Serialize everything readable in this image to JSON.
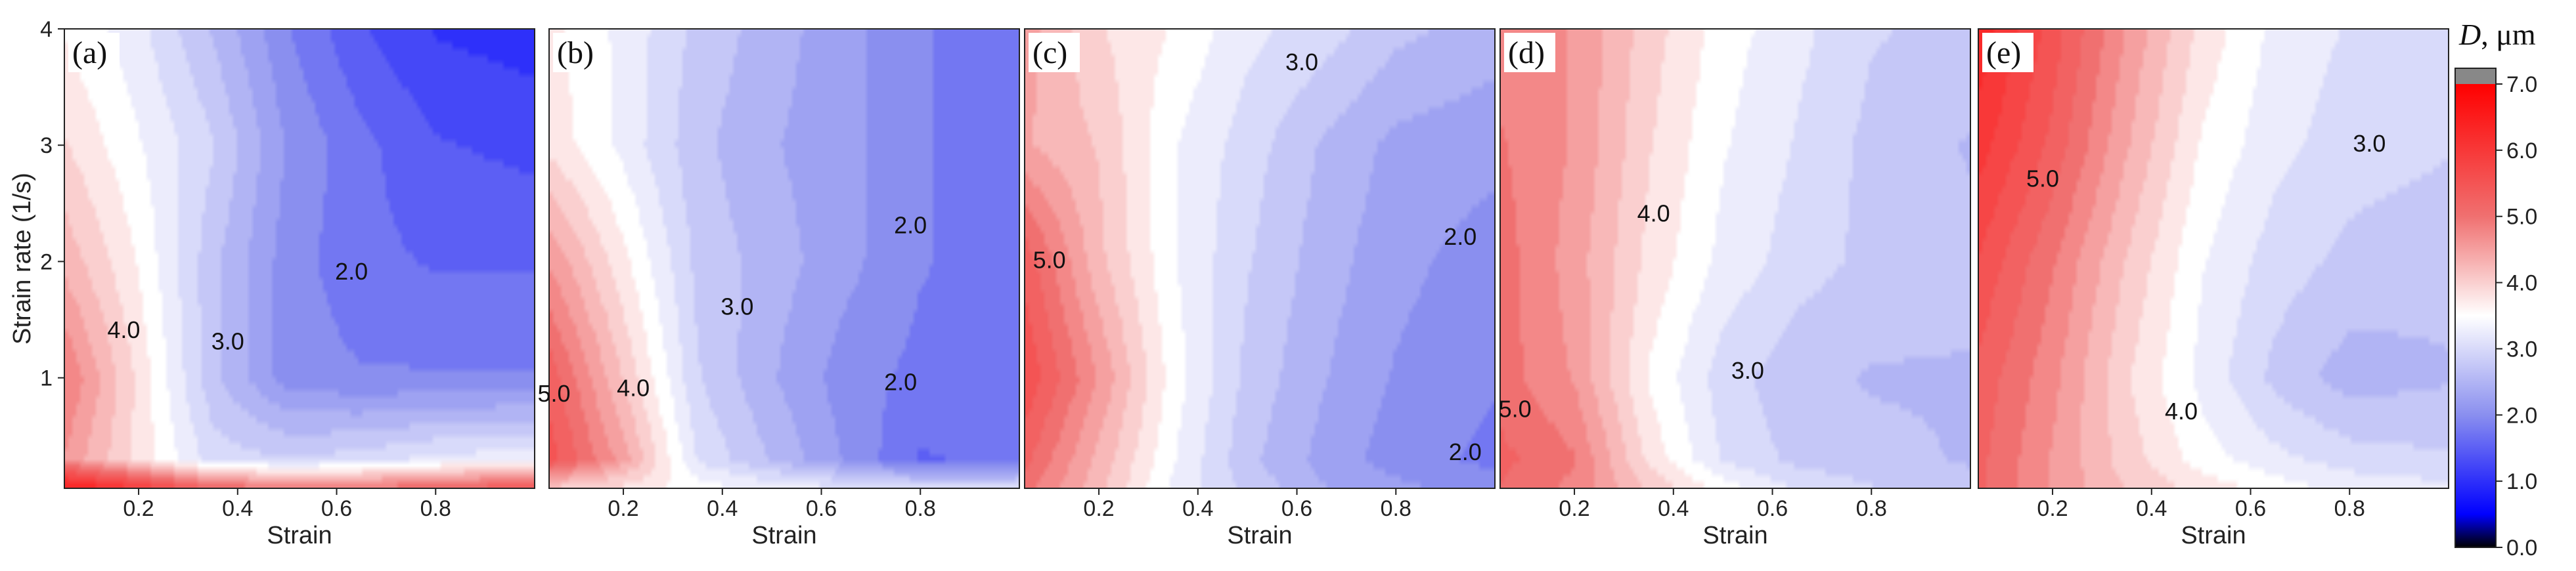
{
  "chart_data": {
    "type": "heatmap",
    "description_kind": "contour",
    "shared": {
      "xlabel": "Strain",
      "ylabel": "Strain rate (1/s)",
      "xlim": [
        0.05,
        1.0
      ],
      "ylim": [
        0.05,
        4.0
      ],
      "xticks": [
        "0.2",
        "0.4",
        "0.6",
        "0.8"
      ],
      "xtick_values": [
        0.2,
        0.4,
        0.6,
        0.8
      ],
      "yticks": [
        "1",
        "2",
        "3",
        "4"
      ],
      "ytick_values": [
        1,
        2,
        3,
        4
      ]
    },
    "colorbar": {
      "title_italic": "D",
      "title_unit": ", μm",
      "range": [
        0.0,
        7.0
      ],
      "ticks": [
        "0.0",
        "1.0",
        "2.0",
        "3.0",
        "4.0",
        "5.0",
        "6.0",
        "7.0"
      ],
      "tick_values": [
        0,
        1,
        2,
        3,
        4,
        5,
        6,
        7
      ],
      "overflow_color": "#888888",
      "stops": [
        {
          "v": 0.0,
          "c": "#000000"
        },
        {
          "v": 0.5,
          "c": "#0000ff"
        },
        {
          "v": 2.0,
          "c": "#8a8fef"
        },
        {
          "v": 3.5,
          "c": "#ffffff"
        },
        {
          "v": 5.0,
          "c": "#f07070"
        },
        {
          "v": 7.0,
          "c": "#ff0000"
        }
      ]
    },
    "panels": [
      {
        "label": "(a)",
        "show_yaxis": true,
        "x": [
          0.05,
          0.2,
          0.35,
          0.5,
          0.65,
          0.8,
          1.0
        ],
        "y": [
          0.05,
          0.3,
          1.0,
          2.0,
          3.0,
          4.0
        ],
        "z": [
          [
            6.6,
            6.0,
            5.2,
            5.0,
            5.0,
            5.2,
            5.5
          ],
          [
            4.6,
            3.8,
            3.0,
            2.9,
            3.0,
            3.2,
            3.3
          ],
          [
            4.9,
            3.8,
            2.7,
            2.0,
            1.9,
            1.9,
            1.9
          ],
          [
            4.3,
            3.6,
            2.7,
            2.0,
            1.7,
            1.6,
            1.6
          ],
          [
            3.9,
            3.4,
            2.9,
            2.1,
            1.7,
            1.4,
            1.3
          ],
          [
            3.6,
            3.2,
            2.6,
            1.9,
            1.4,
            1.1,
            1.0
          ]
        ],
        "contour_labels": [
          {
            "text": "4.0",
            "x": 0.17,
            "y": 1.4
          },
          {
            "text": "3.0",
            "x": 0.38,
            "y": 1.3
          },
          {
            "text": "2.0",
            "x": 0.63,
            "y": 1.9
          }
        ]
      },
      {
        "label": "(b)",
        "show_yaxis": false,
        "x": [
          0.05,
          0.2,
          0.35,
          0.5,
          0.65,
          0.8,
          1.0
        ],
        "y": [
          0.05,
          0.3,
          1.0,
          2.0,
          3.0,
          4.0
        ],
        "z": [
          [
            4.0,
            3.8,
            3.5,
            3.3,
            3.2,
            3.1,
            3.1
          ],
          [
            5.5,
            4.5,
            3.1,
            2.6,
            2.1,
            1.6,
            1.7
          ],
          [
            5.3,
            4.1,
            2.9,
            2.4,
            2.0,
            1.8,
            1.8
          ],
          [
            4.6,
            3.7,
            2.8,
            2.5,
            2.2,
            1.9,
            1.7
          ],
          [
            3.8,
            3.3,
            2.7,
            2.4,
            2.2,
            1.9,
            1.7
          ],
          [
            3.7,
            3.3,
            2.8,
            2.5,
            2.2,
            1.9,
            1.7
          ]
        ],
        "contour_labels": [
          {
            "text": "5.0",
            "x": 0.06,
            "y": 0.85
          },
          {
            "text": "4.0",
            "x": 0.22,
            "y": 0.9
          },
          {
            "text": "3.0",
            "x": 0.43,
            "y": 1.6
          },
          {
            "text": "2.0",
            "x": 0.76,
            "y": 0.95
          },
          {
            "text": "2.0",
            "x": 0.78,
            "y": 2.3
          }
        ]
      },
      {
        "label": "(c)",
        "show_yaxis": false,
        "x": [
          0.05,
          0.2,
          0.35,
          0.5,
          0.65,
          0.8,
          1.0
        ],
        "y": [
          0.05,
          0.3,
          1.0,
          2.0,
          3.0,
          4.0
        ],
        "z": [
          [
            5.0,
            4.2,
            3.3,
            2.8,
            2.4,
            2.2,
            2.0
          ],
          [
            5.2,
            4.3,
            3.4,
            2.7,
            2.3,
            2.0,
            1.8
          ],
          [
            5.6,
            4.6,
            3.5,
            2.8,
            2.4,
            2.1,
            1.9
          ],
          [
            5.3,
            4.2,
            3.4,
            2.9,
            2.5,
            2.2,
            2.0
          ],
          [
            4.4,
            4.1,
            3.4,
            3.0,
            2.6,
            2.3,
            2.2
          ],
          [
            4.5,
            3.9,
            3.6,
            3.2,
            3.0,
            2.7,
            2.5
          ]
        ],
        "contour_labels": [
          {
            "text": "5.0",
            "x": 0.1,
            "y": 2.0
          },
          {
            "text": "3.0",
            "x": 0.61,
            "y": 3.7
          },
          {
            "text": "2.0",
            "x": 0.93,
            "y": 2.2
          },
          {
            "text": "2.0",
            "x": 0.94,
            "y": 0.35
          }
        ]
      },
      {
        "label": "(d)",
        "show_yaxis": false,
        "x": [
          0.05,
          0.2,
          0.35,
          0.5,
          0.65,
          0.8,
          1.0
        ],
        "y": [
          0.05,
          0.3,
          1.0,
          2.0,
          3.0,
          4.0
        ],
        "z": [
          [
            5.1,
            4.8,
            4.1,
            3.5,
            3.1,
            2.9,
            2.7
          ],
          [
            5.2,
            4.9,
            3.8,
            3.1,
            2.8,
            2.7,
            2.6
          ],
          [
            5.0,
            4.6,
            3.6,
            3.0,
            2.7,
            2.6,
            2.6
          ],
          [
            5.0,
            4.5,
            3.8,
            3.3,
            3.0,
            2.8,
            2.7
          ],
          [
            4.9,
            4.6,
            3.9,
            3.4,
            3.1,
            2.8,
            2.6
          ],
          [
            4.8,
            4.6,
            4.0,
            3.5,
            3.2,
            2.9,
            2.8
          ]
        ],
        "contour_labels": [
          {
            "text": "5.0",
            "x": 0.08,
            "y": 0.72
          },
          {
            "text": "4.0",
            "x": 0.36,
            "y": 2.4
          },
          {
            "text": "3.0",
            "x": 0.55,
            "y": 1.05
          }
        ]
      },
      {
        "label": "(e)",
        "show_yaxis": false,
        "x": [
          0.05,
          0.2,
          0.35,
          0.5,
          0.65,
          0.8,
          1.0
        ],
        "y": [
          0.05,
          0.3,
          1.0,
          2.0,
          3.0,
          4.0
        ],
        "z": [
          [
            5.2,
            4.6,
            4.1,
            3.8,
            3.5,
            3.3,
            3.2
          ],
          [
            5.2,
            4.6,
            4.0,
            3.5,
            3.2,
            3.0,
            2.9
          ],
          [
            5.3,
            4.7,
            3.9,
            3.3,
            2.8,
            2.5,
            2.6
          ],
          [
            5.6,
            4.9,
            4.1,
            3.4,
            3.0,
            2.8,
            2.7
          ],
          [
            6.0,
            5.3,
            4.4,
            3.6,
            3.2,
            3.0,
            2.9
          ],
          [
            6.3,
            5.5,
            4.6,
            3.8,
            3.3,
            3.1,
            3.0
          ]
        ],
        "contour_labels": [
          {
            "text": "5.0",
            "x": 0.18,
            "y": 2.7
          },
          {
            "text": "4.0",
            "x": 0.46,
            "y": 0.7
          },
          {
            "text": "3.0",
            "x": 0.84,
            "y": 3.0
          }
        ]
      }
    ]
  }
}
